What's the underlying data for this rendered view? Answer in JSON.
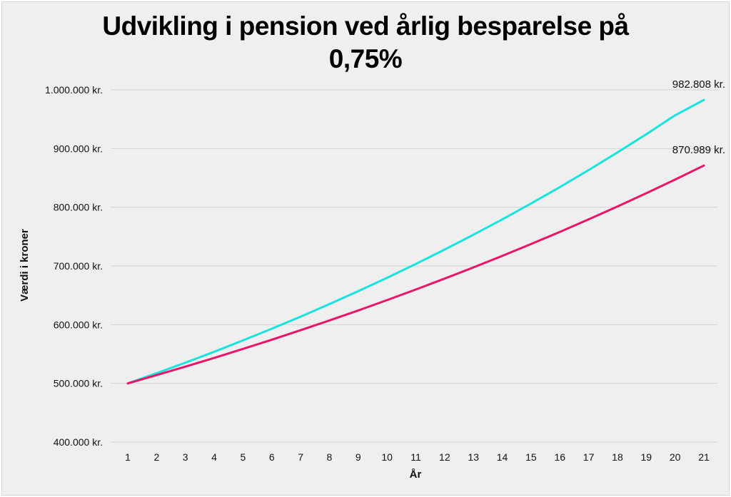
{
  "chart_data": {
    "type": "line",
    "title_line1": "Udvikling i pension ved årlig besparelse på",
    "title_line2": "0,75%",
    "xlabel": "År",
    "ylabel": "Værdi i kroner",
    "ylim": [
      400000,
      1000000
    ],
    "y_ticks": [
      400000,
      500000,
      600000,
      700000,
      800000,
      900000,
      1000000
    ],
    "y_tick_labels": [
      "400.000 kr.",
      "500.000 kr.",
      "600.000 kr.",
      "700.000 kr.",
      "800.000 kr.",
      "900.000 kr.",
      "1.000.000 kr."
    ],
    "grid": true,
    "x": [
      1,
      2,
      3,
      4,
      5,
      6,
      7,
      8,
      9,
      10,
      11,
      12,
      13,
      14,
      15,
      16,
      17,
      18,
      19,
      20,
      21
    ],
    "series": [
      {
        "color": "#19e3dc",
        "end_label": "982.808 kr.",
        "values": [
          500000,
          517364,
          535331,
          553922,
          573159,
          593064,
          613660,
          634971,
          657022,
          679839,
          703448,
          727877,
          753155,
          779310,
          806374,
          834378,
          863354,
          893336,
          924360,
          956461,
          982808
        ]
      },
      {
        "color": "#e81568",
        "end_label": "870.989 kr.",
        "values": [
          500000,
          514067,
          528532,
          543402,
          558691,
          574409,
          590570,
          607186,
          624269,
          641833,
          659891,
          678457,
          697546,
          717171,
          737349,
          758094,
          779424,
          801353,
          823899,
          847080,
          870989
        ]
      }
    ]
  }
}
